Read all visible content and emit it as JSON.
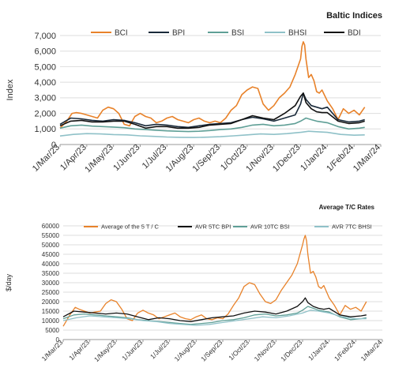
{
  "chart_data": [
    {
      "type": "line",
      "title": "Baltic Indices",
      "ylabel": "Index",
      "xlabel": "",
      "ylim": [
        0,
        7000
      ],
      "yticks": [
        "0",
        "1,000",
        "2,000",
        "3,000",
        "4,000",
        "5,000",
        "6,000",
        "7,000"
      ],
      "xticks": [
        "1/Mar/23",
        "1/Apr/23",
        "1/May/23",
        "1/Jun/23",
        "1/Jul/23",
        "1/Aug/23",
        "1/Sep/23",
        "1/Oct/23",
        "1/Nov/23",
        "1/Dec/23",
        "1/Jan/24",
        "1/Feb/24",
        "1/Mar/24"
      ],
      "legend_position": "top",
      "grid": "horizontal",
      "series": [
        {
          "name": "BCI",
          "color": "#e8822a",
          "x": [
            0,
            0.25,
            0.45,
            0.6,
            0.8,
            1.0,
            1.2,
            1.4,
            1.6,
            1.8,
            2.0,
            2.2,
            2.4,
            2.6,
            2.8,
            3.0,
            3.2,
            3.4,
            3.6,
            3.8,
            4.0,
            4.2,
            4.4,
            4.6,
            4.8,
            5.0,
            5.2,
            5.4,
            5.6,
            5.8,
            6.0,
            6.2,
            6.4,
            6.6,
            6.8,
            7.0,
            7.2,
            7.4,
            7.6,
            7.8,
            8.0,
            8.2,
            8.4,
            8.6,
            8.8,
            9.0,
            9.05,
            9.1,
            9.15,
            9.2,
            9.3,
            9.4,
            9.5,
            9.6,
            9.7,
            9.8,
            10.0,
            10.2,
            10.4,
            10.6,
            10.8,
            11.0,
            11.2,
            11.4
          ],
          "values": [
            1050,
            1500,
            2000,
            2050,
            2000,
            1900,
            1800,
            1700,
            2200,
            2400,
            2300,
            2000,
            1300,
            1200,
            1800,
            2000,
            1800,
            1700,
            1400,
            1500,
            1700,
            1800,
            1600,
            1500,
            1400,
            1600,
            1700,
            1500,
            1400,
            1500,
            1400,
            1700,
            2200,
            2500,
            3200,
            3500,
            3700,
            3600,
            2600,
            2200,
            2500,
            3000,
            3300,
            3700,
            4500,
            5500,
            6300,
            6600,
            6400,
            5500,
            4300,
            4500,
            4100,
            3400,
            3300,
            3500,
            2800,
            2300,
            1600,
            2300,
            2000,
            2200,
            1900,
            2400
          ]
        },
        {
          "name": "BPI",
          "color": "#1a2a3a",
          "x": [
            0,
            0.4,
            0.8,
            1.2,
            1.6,
            2.0,
            2.4,
            2.8,
            3.2,
            3.6,
            4.0,
            4.4,
            4.8,
            5.2,
            5.6,
            6.0,
            6.4,
            6.8,
            7.2,
            7.6,
            8.0,
            8.4,
            8.8,
            9.0,
            9.1,
            9.2,
            9.4,
            9.6,
            9.8,
            10.0,
            10.4,
            10.8,
            11.2,
            11.4
          ],
          "values": [
            1300,
            1700,
            1650,
            1550,
            1500,
            1600,
            1550,
            1400,
            1200,
            1300,
            1250,
            1150,
            1100,
            1200,
            1300,
            1350,
            1400,
            1600,
            1750,
            1650,
            1500,
            1700,
            1900,
            2600,
            3300,
            2900,
            2500,
            2400,
            2300,
            2400,
            1600,
            1450,
            1500,
            1600
          ]
        },
        {
          "name": "BSI",
          "color": "#5f9f96",
          "x": [
            0,
            0.4,
            0.8,
            1.2,
            1.6,
            2.0,
            2.4,
            2.8,
            3.2,
            3.6,
            4.0,
            4.4,
            4.8,
            5.2,
            5.6,
            6.0,
            6.4,
            6.8,
            7.2,
            7.6,
            8.0,
            8.4,
            8.8,
            9.0,
            9.2,
            9.4,
            9.6,
            9.8,
            10.0,
            10.4,
            10.8,
            11.2,
            11.4
          ],
          "values": [
            1050,
            1200,
            1250,
            1180,
            1150,
            1120,
            1080,
            1000,
            960,
            920,
            880,
            850,
            830,
            850,
            900,
            960,
            1000,
            1100,
            1250,
            1300,
            1200,
            1250,
            1350,
            1500,
            1700,
            1600,
            1500,
            1450,
            1400,
            1150,
            1000,
            1050,
            1100
          ]
        },
        {
          "name": "BHSI",
          "color": "#8fc1c8",
          "x": [
            0,
            0.5,
            1.0,
            1.5,
            2.0,
            2.5,
            3.0,
            3.5,
            4.0,
            4.5,
            5.0,
            5.5,
            6.0,
            6.5,
            7.0,
            7.5,
            8.0,
            8.5,
            9.0,
            9.3,
            9.6,
            10.0,
            10.5,
            11.0,
            11.4
          ],
          "values": [
            550,
            650,
            700,
            680,
            640,
            620,
            560,
            520,
            480,
            460,
            450,
            470,
            500,
            560,
            620,
            680,
            650,
            700,
            780,
            850,
            820,
            780,
            650,
            600,
            620
          ]
        },
        {
          "name": "BDI",
          "color": "#111111",
          "x": [
            0,
            0.4,
            0.8,
            1.2,
            1.6,
            2.0,
            2.4,
            2.8,
            3.2,
            3.6,
            4.0,
            4.4,
            4.8,
            5.2,
            5.6,
            6.0,
            6.4,
            6.8,
            7.2,
            7.6,
            8.0,
            8.4,
            8.8,
            9.0,
            9.1,
            9.2,
            9.4,
            9.6,
            9.8,
            10.0,
            10.4,
            10.8,
            11.2,
            11.4
          ],
          "values": [
            1200,
            1500,
            1550,
            1450,
            1450,
            1500,
            1500,
            1300,
            1050,
            1150,
            1150,
            1050,
            1050,
            1100,
            1250,
            1300,
            1350,
            1600,
            1850,
            1700,
            1600,
            2000,
            2500,
            3100,
            3300,
            2700,
            2300,
            2100,
            2050,
            2050,
            1500,
            1350,
            1400,
            1500
          ]
        }
      ]
    },
    {
      "type": "line",
      "title": "Average T/C Rates",
      "ylabel": "$/day",
      "xlabel": "",
      "ylim": [
        0,
        60000
      ],
      "yticks": [
        "0",
        "5000",
        "10000",
        "15000",
        "20000",
        "25000",
        "30000",
        "35000",
        "40000",
        "45000",
        "50000",
        "55000",
        "60000"
      ],
      "xticks": [
        "1/Mar/23",
        "1/Apr/23",
        "1/May/23",
        "1/Jun/23",
        "1/Jul/23",
        "1/Aug/23",
        "1/Sep/23",
        "1/Oct/23",
        "1/Nov/23",
        "1/Dec/23",
        "1/Jan/24",
        "1/Feb/24",
        "1/Mar/24"
      ],
      "legend_position": "top",
      "grid": "horizontal",
      "series": [
        {
          "name": "Average of the 5 T / C",
          "color": "#e8822a",
          "x": [
            0,
            0.25,
            0.45,
            0.6,
            0.8,
            1.0,
            1.2,
            1.4,
            1.6,
            1.8,
            2.0,
            2.2,
            2.4,
            2.6,
            2.8,
            3.0,
            3.2,
            3.4,
            3.6,
            3.8,
            4.0,
            4.2,
            4.4,
            4.6,
            4.8,
            5.0,
            5.2,
            5.4,
            5.6,
            5.8,
            6.0,
            6.2,
            6.4,
            6.6,
            6.8,
            7.0,
            7.2,
            7.4,
            7.6,
            7.8,
            8.0,
            8.2,
            8.4,
            8.6,
            8.8,
            9.0,
            9.05,
            9.1,
            9.15,
            9.2,
            9.3,
            9.4,
            9.5,
            9.6,
            9.7,
            9.8,
            10.0,
            10.2,
            10.4,
            10.6,
            10.8,
            11.0,
            11.2,
            11.4
          ],
          "values": [
            7000,
            13000,
            17000,
            16000,
            15000,
            14000,
            14500,
            15000,
            19000,
            21000,
            20000,
            16000,
            11000,
            10000,
            14000,
            15500,
            14000,
            13000,
            11000,
            12000,
            13000,
            14000,
            12000,
            11000,
            10500,
            12000,
            13000,
            11000,
            10500,
            11500,
            11000,
            13500,
            18000,
            22000,
            28000,
            30000,
            29000,
            24000,
            20000,
            19000,
            21000,
            26000,
            30000,
            34000,
            40000,
            50000,
            53000,
            55000,
            52000,
            45000,
            35000,
            36000,
            33000,
            28000,
            27000,
            28500,
            22000,
            18000,
            13000,
            18000,
            16000,
            17000,
            15000,
            20000
          ]
        },
        {
          "name": "AVR 5TC BPI",
          "color": "#111111",
          "x": [
            0,
            0.4,
            0.8,
            1.2,
            1.6,
            2.0,
            2.4,
            2.8,
            3.2,
            3.6,
            4.0,
            4.4,
            4.8,
            5.2,
            5.6,
            6.0,
            6.4,
            6.8,
            7.2,
            7.6,
            8.0,
            8.4,
            8.8,
            9.0,
            9.1,
            9.2,
            9.4,
            9.6,
            9.8,
            10.0,
            10.4,
            10.8,
            11.2,
            11.4
          ],
          "values": [
            12000,
            15000,
            14500,
            14000,
            13500,
            14000,
            13500,
            12000,
            10500,
            11500,
            11000,
            10000,
            9500,
            10500,
            11500,
            12000,
            12500,
            14000,
            15000,
            14500,
            13500,
            15000,
            17500,
            20000,
            22000,
            19500,
            17500,
            16500,
            16000,
            16500,
            13000,
            12000,
            12500,
            13000
          ]
        },
        {
          "name": "AVR 10TC BSI",
          "color": "#5f9f96",
          "x": [
            0,
            0.4,
            0.8,
            1.2,
            1.6,
            2.0,
            2.4,
            2.8,
            3.2,
            3.6,
            4.0,
            4.4,
            4.8,
            5.2,
            5.6,
            6.0,
            6.4,
            6.8,
            7.2,
            7.6,
            8.0,
            8.4,
            8.8,
            9.0,
            9.2,
            9.4,
            9.6,
            9.8,
            10.0,
            10.4,
            10.8,
            11.2,
            11.4
          ],
          "values": [
            11000,
            13000,
            13500,
            13000,
            12500,
            12000,
            11500,
            10500,
            10000,
            9500,
            9000,
            8500,
            8000,
            8500,
            9000,
            10000,
            10500,
            11500,
            13000,
            13500,
            12500,
            13000,
            14000,
            15500,
            17500,
            16500,
            15500,
            15000,
            14500,
            12000,
            10500,
            11000,
            11500
          ]
        },
        {
          "name": "AVR 7TC BHSI",
          "color": "#8fc1c8",
          "x": [
            0,
            0.5,
            1.0,
            1.5,
            2.0,
            2.5,
            3.0,
            3.5,
            4.0,
            4.5,
            5.0,
            5.5,
            6.0,
            6.5,
            7.0,
            7.5,
            8.0,
            8.5,
            9.0,
            9.3,
            9.6,
            10.0,
            10.5,
            11.0,
            11.4
          ],
          "values": [
            10000,
            11500,
            12500,
            12000,
            11500,
            11000,
            10000,
            9500,
            8500,
            8000,
            7500,
            8000,
            9000,
            10000,
            11000,
            12000,
            11500,
            12500,
            14000,
            15500,
            15000,
            14000,
            12000,
            11000,
            11000
          ]
        }
      ]
    }
  ]
}
